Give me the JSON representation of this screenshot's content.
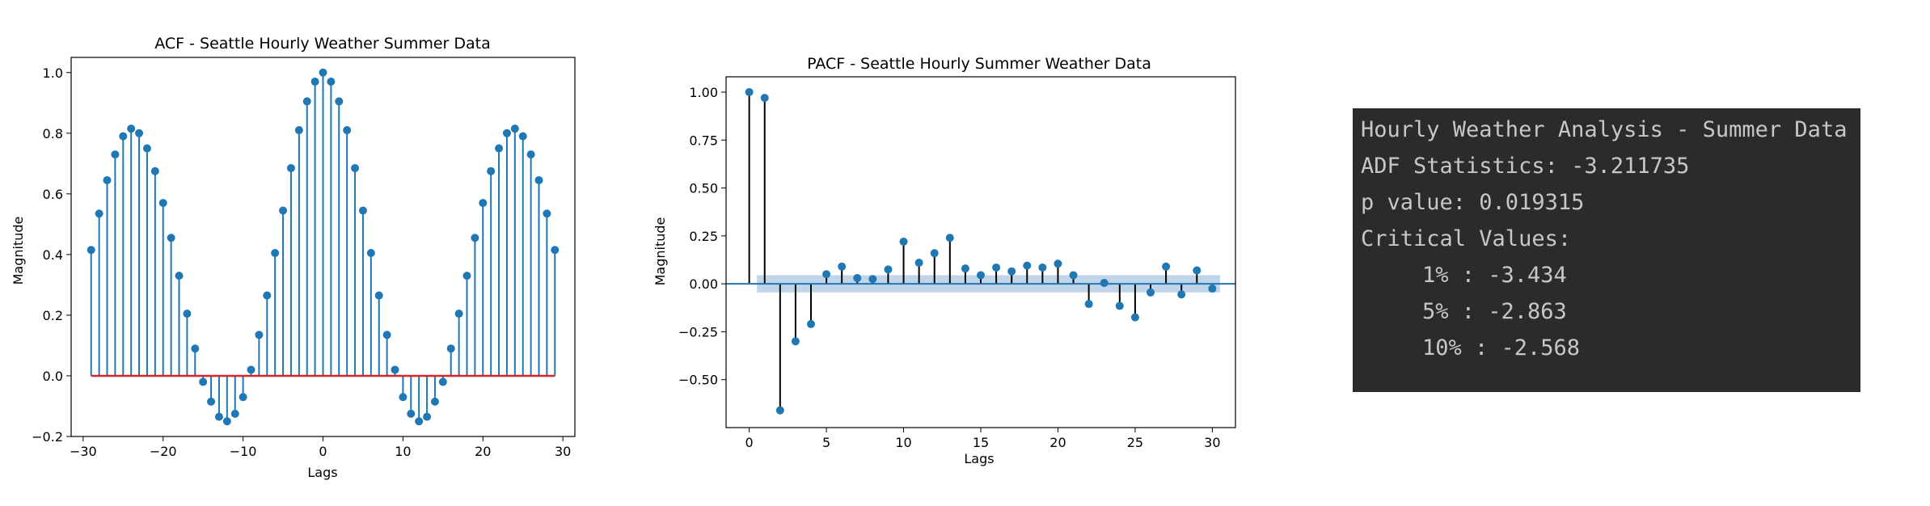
{
  "chart_data": [
    {
      "type": "stem",
      "title": "ACF - Seattle Hourly Weather Summer Data",
      "xlabel": "Lags",
      "ylabel": "Magnitude",
      "xlim": [
        -31.5,
        31.5
      ],
      "ylim": [
        -0.2,
        1.05
      ],
      "xticks": [
        -30,
        -20,
        -10,
        0,
        10,
        20,
        30
      ],
      "xtick_labels": [
        "−30",
        "−20",
        "−10",
        "0",
        "10",
        "20",
        "30"
      ],
      "yticks": [
        -0.2,
        0.0,
        0.2,
        0.4,
        0.6,
        0.8,
        1.0
      ],
      "ytick_labels": [
        "−0.2",
        "0.0",
        "0.2",
        "0.4",
        "0.6",
        "0.8",
        "1.0"
      ],
      "x": [
        -29,
        -28,
        -27,
        -26,
        -25,
        -24,
        -23,
        -22,
        -21,
        -20,
        -19,
        -18,
        -17,
        -16,
        -15,
        -14,
        -13,
        -12,
        -11,
        -10,
        -9,
        -8,
        -7,
        -6,
        -5,
        -4,
        -3,
        -2,
        -1,
        0,
        1,
        2,
        3,
        4,
        5,
        6,
        7,
        8,
        9,
        10,
        11,
        12,
        13,
        14,
        15,
        16,
        17,
        18,
        19,
        20,
        21,
        22,
        23,
        24,
        25,
        26,
        27,
        28,
        29
      ],
      "y": [
        0.415,
        0.535,
        0.645,
        0.73,
        0.79,
        0.815,
        0.8,
        0.75,
        0.675,
        0.57,
        0.455,
        0.33,
        0.205,
        0.09,
        -0.02,
        -0.085,
        -0.135,
        -0.15,
        -0.125,
        -0.07,
        0.02,
        0.135,
        0.265,
        0.405,
        0.545,
        0.685,
        0.81,
        0.905,
        0.97,
        1.0,
        0.97,
        0.905,
        0.81,
        0.685,
        0.545,
        0.405,
        0.265,
        0.135,
        0.02,
        -0.07,
        -0.125,
        -0.15,
        -0.135,
        -0.085,
        -0.02,
        0.09,
        0.205,
        0.33,
        0.455,
        0.57,
        0.675,
        0.75,
        0.8,
        0.815,
        0.79,
        0.73,
        0.645,
        0.535,
        0.415
      ],
      "colors": {
        "stem": "#1f77b4",
        "marker": "#1f77b4",
        "baseline": "#d62728"
      }
    },
    {
      "type": "stem",
      "title": "PACF - Seattle Hourly Summer Weather Data",
      "xlabel": "Lags",
      "ylabel": "Magnitude",
      "xlim": [
        -1.5,
        31.5
      ],
      "ylim": [
        -0.75,
        1.08
      ],
      "xticks": [
        0,
        5,
        10,
        15,
        20,
        25,
        30
      ],
      "xtick_labels": [
        "0",
        "5",
        "10",
        "15",
        "20",
        "25",
        "30"
      ],
      "yticks": [
        -0.5,
        -0.25,
        0.0,
        0.25,
        0.5,
        0.75,
        1.0
      ],
      "ytick_labels": [
        "−0.50",
        "−0.25",
        "0.00",
        "0.25",
        "0.50",
        "0.75",
        "1.00"
      ],
      "x": [
        0,
        1,
        2,
        3,
        4,
        5,
        6,
        7,
        8,
        9,
        10,
        11,
        12,
        13,
        14,
        15,
        16,
        17,
        18,
        19,
        20,
        21,
        22,
        23,
        24,
        25,
        26,
        27,
        28,
        29,
        30
      ],
      "y": [
        1.0,
        0.97,
        -0.66,
        -0.3,
        -0.21,
        0.05,
        0.09,
        0.03,
        0.025,
        0.075,
        0.22,
        0.11,
        0.16,
        0.24,
        0.08,
        0.045,
        0.085,
        0.065,
        0.095,
        0.085,
        0.105,
        0.045,
        -0.105,
        0.005,
        -0.115,
        -0.175,
        -0.045,
        0.09,
        -0.055,
        0.07,
        -0.025
      ],
      "confidence_band": [
        -0.045,
        0.045
      ],
      "colors": {
        "stem": "#000000",
        "marker": "#1f77b4",
        "baseline": "#1f77b4",
        "band": "#b5cde6"
      }
    }
  ],
  "console": {
    "title": "Hourly Weather Analysis - Summer Data",
    "adf": "ADF Statistics: -3.211735",
    "pvalue": "p value: 0.019315",
    "critical_header": "Critical Values:",
    "critical_values": [
      "1% : -3.434",
      "5% : -2.863",
      "10% : -2.568"
    ],
    "bg_color": "#2b2b2b",
    "text_color": "#c7c7c7"
  }
}
